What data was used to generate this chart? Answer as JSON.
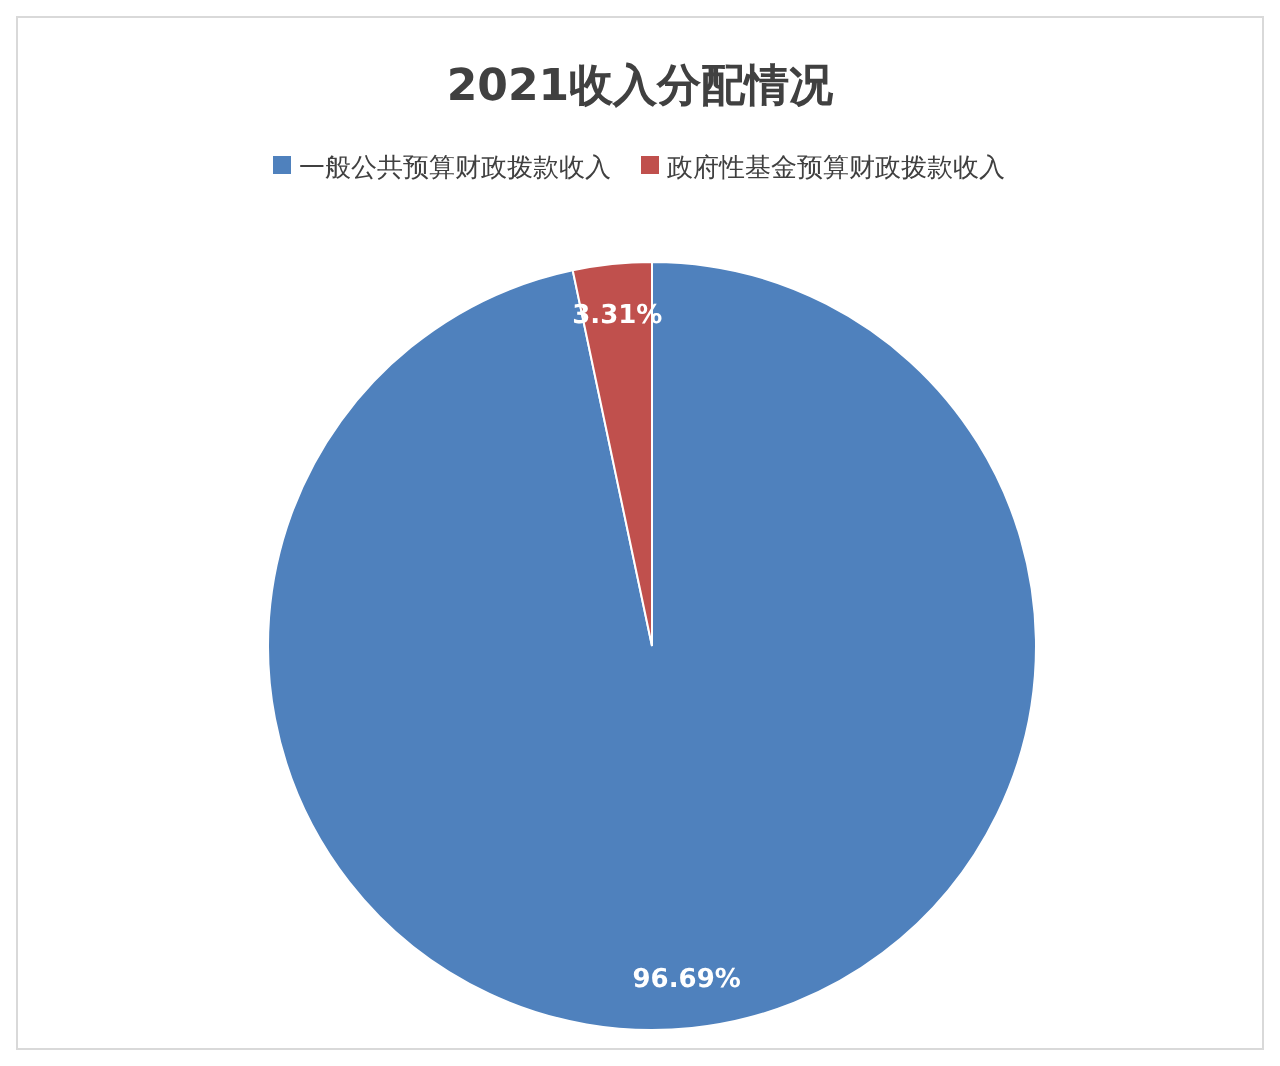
{
  "chart_data": {
    "type": "pie",
    "title": "2021收入分配情况",
    "categories": [
      "一般公共预算财政拨款收入",
      "政府性基金预算财政拨款收入"
    ],
    "values": [
      96.69,
      3.31
    ],
    "colors": [
      "#4f81bd",
      "#c0504d"
    ],
    "value_labels": [
      "96.69%",
      "3.31%"
    ],
    "legend": "top"
  }
}
